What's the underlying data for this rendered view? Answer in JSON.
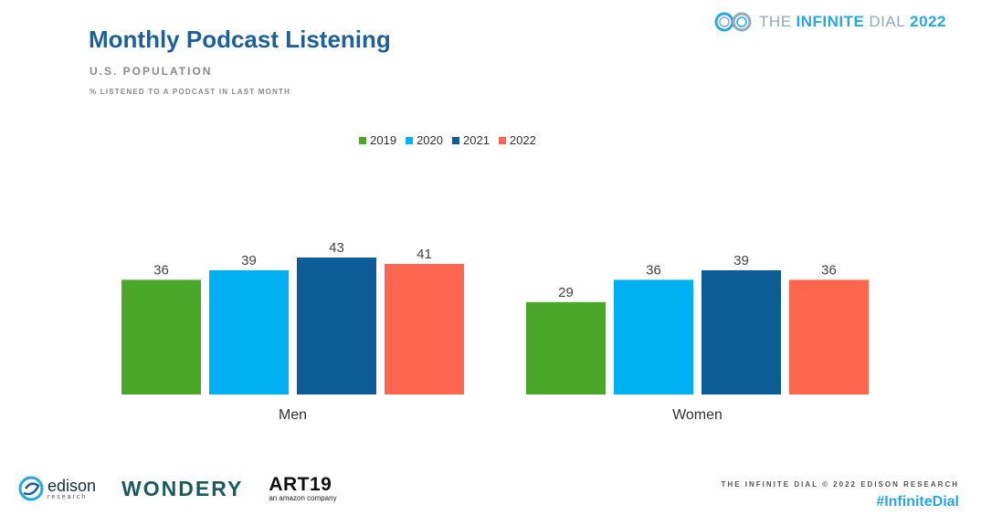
{
  "chart_data": {
    "type": "bar",
    "title": "Monthly Podcast Listening",
    "subtitle": "U.S. POPULATION",
    "note": "% LISTENED TO A PODCAST IN LAST MONTH",
    "categories": [
      "Men",
      "Women"
    ],
    "series": [
      {
        "name": "2019",
        "color": "#4aa72a",
        "values": [
          36,
          29
        ]
      },
      {
        "name": "2020",
        "color": "#00b0f0",
        "values": [
          39,
          36
        ]
      },
      {
        "name": "2021",
        "color": "#0b5c97",
        "values": [
          43,
          39
        ]
      },
      {
        "name": "2022",
        "color": "#ff6650",
        "values": [
          41,
          36
        ]
      }
    ],
    "ylim": [
      0,
      43
    ],
    "legend_position": "top-center",
    "grid": false
  },
  "brand": {
    "prefix": "THE",
    "name": "INFINITE",
    "suffix": "DIAL",
    "year": "2022"
  },
  "footer": {
    "edison": "edison",
    "edison_sub": "research",
    "wondery": "WONDERY",
    "art19": "ART19",
    "art19_sub": "an amazon company",
    "credit": "THE INFINITE DIAL   © 2022 EDISON RESEARCH",
    "hashtag": "#InfiniteDial"
  },
  "icons": {
    "brand_logo": "infinity-rings-icon",
    "edison_logo": "edison-swirl-icon",
    "art19_logo": "art19-arc-icon"
  }
}
